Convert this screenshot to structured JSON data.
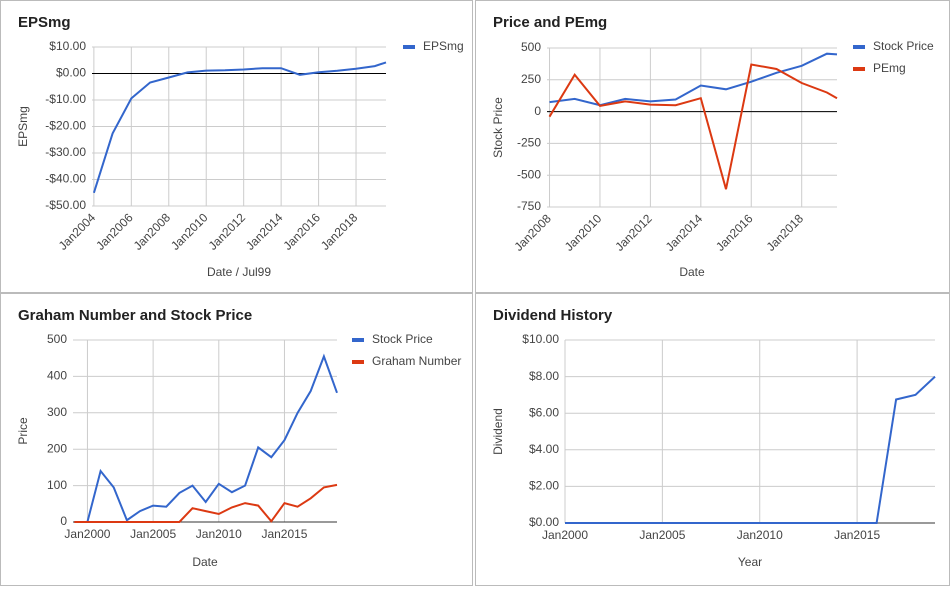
{
  "chart_data": [
    {
      "type": "line",
      "title": "EPSmg",
      "x_label": "Date / Jul99",
      "y_label": "EPSmg",
      "legend": "right",
      "grid": true,
      "x": [
        2004,
        2005,
        2006,
        2007,
        2008,
        2009,
        2010,
        2011,
        2012,
        2013,
        2014,
        2015,
        2016,
        2017,
        2018,
        2019,
        2019.6
      ],
      "series": [
        {
          "name": "EPSmg",
          "color": "#3366cc",
          "values": [
            -45,
            -22.6,
            -9.4,
            -3.4,
            -1.5,
            0.4,
            1.1,
            1.2,
            1.5,
            2,
            2,
            -0.5,
            0.5,
            1,
            1.8,
            2.8,
            4.2
          ]
        }
      ],
      "xlim": [
        2003.9,
        2019.6
      ],
      "ylim": [
        -50,
        10
      ],
      "xticks": [
        {
          "value": 2004,
          "label": "Jan2004"
        },
        {
          "value": 2006,
          "label": "Jan2006"
        },
        {
          "value": 2008,
          "label": "Jan2008"
        },
        {
          "value": 2010,
          "label": "Jan2010"
        },
        {
          "value": 2012,
          "label": "Jan2012"
        },
        {
          "value": 2014,
          "label": "Jan2014"
        },
        {
          "value": 2016,
          "label": "Jan2016"
        },
        {
          "value": 2018,
          "label": "Jan2018"
        }
      ],
      "yticks": [
        {
          "value": -50,
          "label": "-$50.00"
        },
        {
          "value": -40,
          "label": "-$40.00"
        },
        {
          "value": -30,
          "label": "-$30.00"
        },
        {
          "value": -20,
          "label": "-$20.00"
        },
        {
          "value": -10,
          "label": "-$10.00"
        },
        {
          "value": 0,
          "label": "$0.00"
        },
        {
          "value": 10,
          "label": "$10.00"
        }
      ]
    },
    {
      "type": "line",
      "title": "Price and PEmg",
      "x_label": "Date",
      "y_label": "Stock Price",
      "legend": "right",
      "grid": true,
      "x": [
        2008,
        2009,
        2010,
        2011,
        2012,
        2013,
        2014,
        2015,
        2016,
        2017,
        2018,
        2019,
        2019.4
      ],
      "series": [
        {
          "name": "Stock Price",
          "color": "#3366cc",
          "values": [
            75,
            100,
            50,
            100,
            80,
            95,
            205,
            175,
            235,
            305,
            360,
            455,
            450
          ]
        },
        {
          "name": "PEmg",
          "color": "#dc3912",
          "values": [
            -40,
            290,
            45,
            80,
            55,
            50,
            105,
            -610,
            370,
            335,
            225,
            150,
            105
          ]
        }
      ],
      "xlim": [
        2007.9,
        2019.4
      ],
      "ylim": [
        -750,
        500
      ],
      "xticks": [
        {
          "value": 2008,
          "label": "Jan2008"
        },
        {
          "value": 2010,
          "label": "Jan2010"
        },
        {
          "value": 2012,
          "label": "Jan2012"
        },
        {
          "value": 2014,
          "label": "Jan2014"
        },
        {
          "value": 2016,
          "label": "Jan2016"
        },
        {
          "value": 2018,
          "label": "Jan2018"
        }
      ],
      "yticks": [
        -750,
        -500,
        -250,
        0,
        250,
        500
      ]
    },
    {
      "type": "line",
      "title": "Graham Number and Stock Price",
      "x_label": "Date",
      "y_label": "Price",
      "legend": "right",
      "grid": true,
      "x": [
        1999,
        2000,
        2001,
        2002,
        2003,
        2004,
        2005,
        2006,
        2007,
        2008,
        2009,
        2010,
        2011,
        2012,
        2013,
        2014,
        2015,
        2016,
        2017,
        2018,
        2019
      ],
      "series": [
        {
          "name": "Stock Price",
          "color": "#3366cc",
          "values": [
            0,
            0,
            140,
            95,
            5,
            30,
            45,
            42,
            80,
            100,
            55,
            105,
            82,
            100,
            205,
            178,
            225,
            300,
            360,
            455,
            355
          ]
        },
        {
          "name": "Graham Number",
          "color": "#dc3912",
          "values": [
            0,
            0,
            0,
            0,
            0,
            0,
            0,
            0,
            0,
            38,
            30,
            22,
            40,
            52,
            45,
            2,
            52,
            42,
            65,
            95,
            102
          ]
        }
      ],
      "xlim": [
        1998.9,
        2019
      ],
      "ylim": [
        0,
        500
      ],
      "xticks": [
        {
          "value": 2000,
          "label": "Jan2000"
        },
        {
          "value": 2005,
          "label": "Jan2005"
        },
        {
          "value": 2010,
          "label": "Jan2010"
        },
        {
          "value": 2015,
          "label": "Jan2015"
        }
      ],
      "yticks": [
        0,
        100,
        200,
        300,
        400,
        500
      ]
    },
    {
      "type": "line",
      "title": "Dividend History",
      "x_label": "Year",
      "y_label": "Dividend",
      "grid": true,
      "x": [
        2000,
        2001,
        2002,
        2003,
        2004,
        2005,
        2006,
        2007,
        2008,
        2009,
        2010,
        2011,
        2012,
        2013,
        2014,
        2015,
        2016,
        2017,
        2018,
        2019
      ],
      "series": [
        {
          "color": "#3366cc",
          "values": [
            0,
            0,
            0,
            0,
            0,
            0,
            0,
            0,
            0,
            0,
            0,
            0,
            0,
            0,
            0,
            0,
            0,
            6.75,
            7,
            8
          ]
        }
      ],
      "xlim": [
        2000,
        2019
      ],
      "ylim": [
        0,
        10
      ],
      "xticks": [
        {
          "value": 2000,
          "label": "Jan2000"
        },
        {
          "value": 2005,
          "label": "Jan2005"
        },
        {
          "value": 2010,
          "label": "Jan2010"
        },
        {
          "value": 2015,
          "label": "Jan2015"
        }
      ],
      "yticks": [
        {
          "value": 0,
          "label": "$0.00"
        },
        {
          "value": 2,
          "label": "$2.00"
        },
        {
          "value": 4,
          "label": "$4.00"
        },
        {
          "value": 6,
          "label": "$6.00"
        },
        {
          "value": 8,
          "label": "$8.00"
        },
        {
          "value": 10,
          "label": "$10.00"
        }
      ]
    }
  ]
}
